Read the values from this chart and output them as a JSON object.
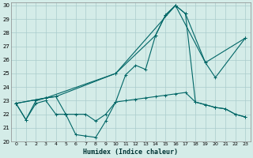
{
  "title": "",
  "xlabel": "Humidex (Indice chaleur)",
  "xlim": [
    -0.5,
    23.5
  ],
  "ylim": [
    20,
    30.2
  ],
  "yticks": [
    20,
    21,
    22,
    23,
    24,
    25,
    26,
    27,
    28,
    29,
    30
  ],
  "xticks": [
    0,
    1,
    2,
    3,
    4,
    5,
    6,
    7,
    8,
    9,
    10,
    11,
    12,
    13,
    14,
    15,
    16,
    17,
    18,
    19,
    20,
    21,
    22,
    23
  ],
  "background_color": "#d4ece8",
  "grid_color": "#aacccc",
  "line_color": "#006666",
  "series": [
    {
      "x": [
        0,
        1,
        2,
        3,
        4,
        5,
        6,
        7,
        8,
        9,
        10,
        11,
        12,
        13,
        14,
        15,
        16,
        17,
        18,
        19,
        20,
        21,
        22,
        23
      ],
      "y": [
        22.8,
        21.6,
        23.0,
        23.2,
        23.3,
        22.0,
        20.5,
        20.4,
        20.3,
        21.5,
        22.9,
        24.9,
        25.6,
        25.3,
        27.8,
        29.3,
        30.0,
        29.4,
        22.9,
        22.7,
        22.5,
        22.4,
        22.0,
        21.8
      ]
    },
    {
      "x": [
        0,
        3,
        10,
        14,
        15,
        16,
        17,
        19,
        20,
        23
      ],
      "y": [
        22.8,
        23.2,
        25.0,
        27.8,
        29.3,
        30.0,
        29.4,
        25.8,
        24.7,
        27.6
      ]
    },
    {
      "x": [
        0,
        3,
        4,
        10,
        16,
        19,
        23
      ],
      "y": [
        22.8,
        23.2,
        23.3,
        25.0,
        30.0,
        25.8,
        27.6
      ]
    },
    {
      "x": [
        0,
        1,
        2,
        3,
        4,
        5,
        6,
        7,
        8,
        9,
        10,
        11,
        12,
        13,
        14,
        15,
        16,
        17,
        18,
        19,
        20,
        21,
        22,
        23
      ],
      "y": [
        22.8,
        21.6,
        22.8,
        23.0,
        22.0,
        22.0,
        22.0,
        22.0,
        21.5,
        22.0,
        22.9,
        23.0,
        23.1,
        23.2,
        23.3,
        23.4,
        23.5,
        23.6,
        22.9,
        22.7,
        22.5,
        22.4,
        22.0,
        21.8
      ]
    }
  ]
}
